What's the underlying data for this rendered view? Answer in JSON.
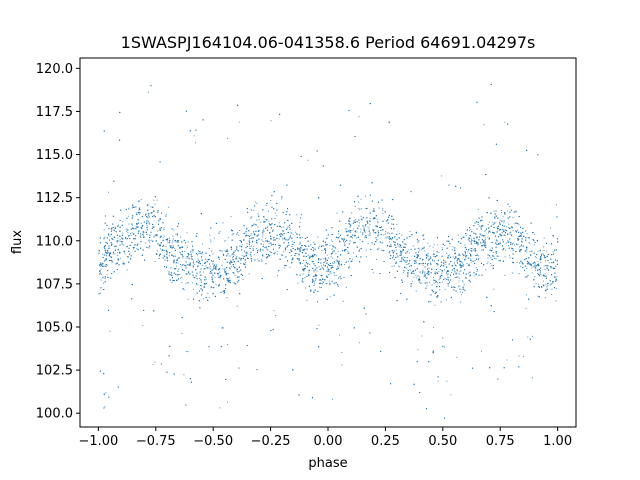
{
  "chart_data": {
    "type": "scatter",
    "title": "1SWASPJ164104.06-041358.6 Period 64691.04297s",
    "xlabel": "phase",
    "ylabel": "flux",
    "xlim": [
      -1.08,
      1.08
    ],
    "ylim": [
      99.2,
      120.6
    ],
    "xticks": [
      "−1.00",
      "−0.75",
      "−0.50",
      "−0.25",
      "0.00",
      "0.25",
      "0.50",
      "0.75",
      "1.00"
    ],
    "xtick_values": [
      -1.0,
      -0.75,
      -0.5,
      -0.25,
      0.0,
      0.25,
      0.5,
      0.75,
      1.0
    ],
    "yticks": [
      "100.0",
      "102.5",
      "105.0",
      "107.5",
      "110.0",
      "112.5",
      "115.0",
      "117.5",
      "120.0"
    ],
    "ytick_values": [
      100.0,
      102.5,
      105.0,
      107.5,
      110.0,
      112.5,
      115.0,
      117.5,
      120.0
    ],
    "grid": false,
    "marker_color": "#1f77b4",
    "series": [
      {
        "x": [
          -1.0,
          -0.95,
          -0.9,
          -0.85,
          -0.8,
          -0.75,
          -0.7,
          -0.65,
          -0.6,
          -0.55,
          -0.5,
          -0.45,
          -0.4,
          -0.35,
          -0.3,
          -0.25,
          -0.2,
          -0.15,
          -0.1,
          -0.05,
          0.0,
          0.05,
          0.1,
          0.15,
          0.2,
          0.25,
          0.3,
          0.35,
          0.4,
          0.45,
          0.5,
          0.55,
          0.6,
          0.65,
          0.7,
          0.75,
          0.8,
          0.85,
          0.9,
          0.95,
          1.0
        ],
        "y": [
          108.7,
          109.5,
          110.2,
          110.7,
          111.0,
          110.6,
          109.6,
          109.0,
          108.6,
          108.3,
          108.4,
          108.5,
          108.9,
          109.6,
          110.3,
          110.5,
          110.2,
          109.7,
          108.9,
          108.2,
          108.7,
          109.5,
          110.2,
          110.7,
          111.0,
          110.6,
          109.6,
          109.0,
          108.6,
          108.3,
          108.4,
          108.5,
          108.9,
          109.6,
          110.3,
          110.5,
          110.2,
          109.7,
          108.9,
          108.2,
          108.7
        ]
      }
    ]
  }
}
